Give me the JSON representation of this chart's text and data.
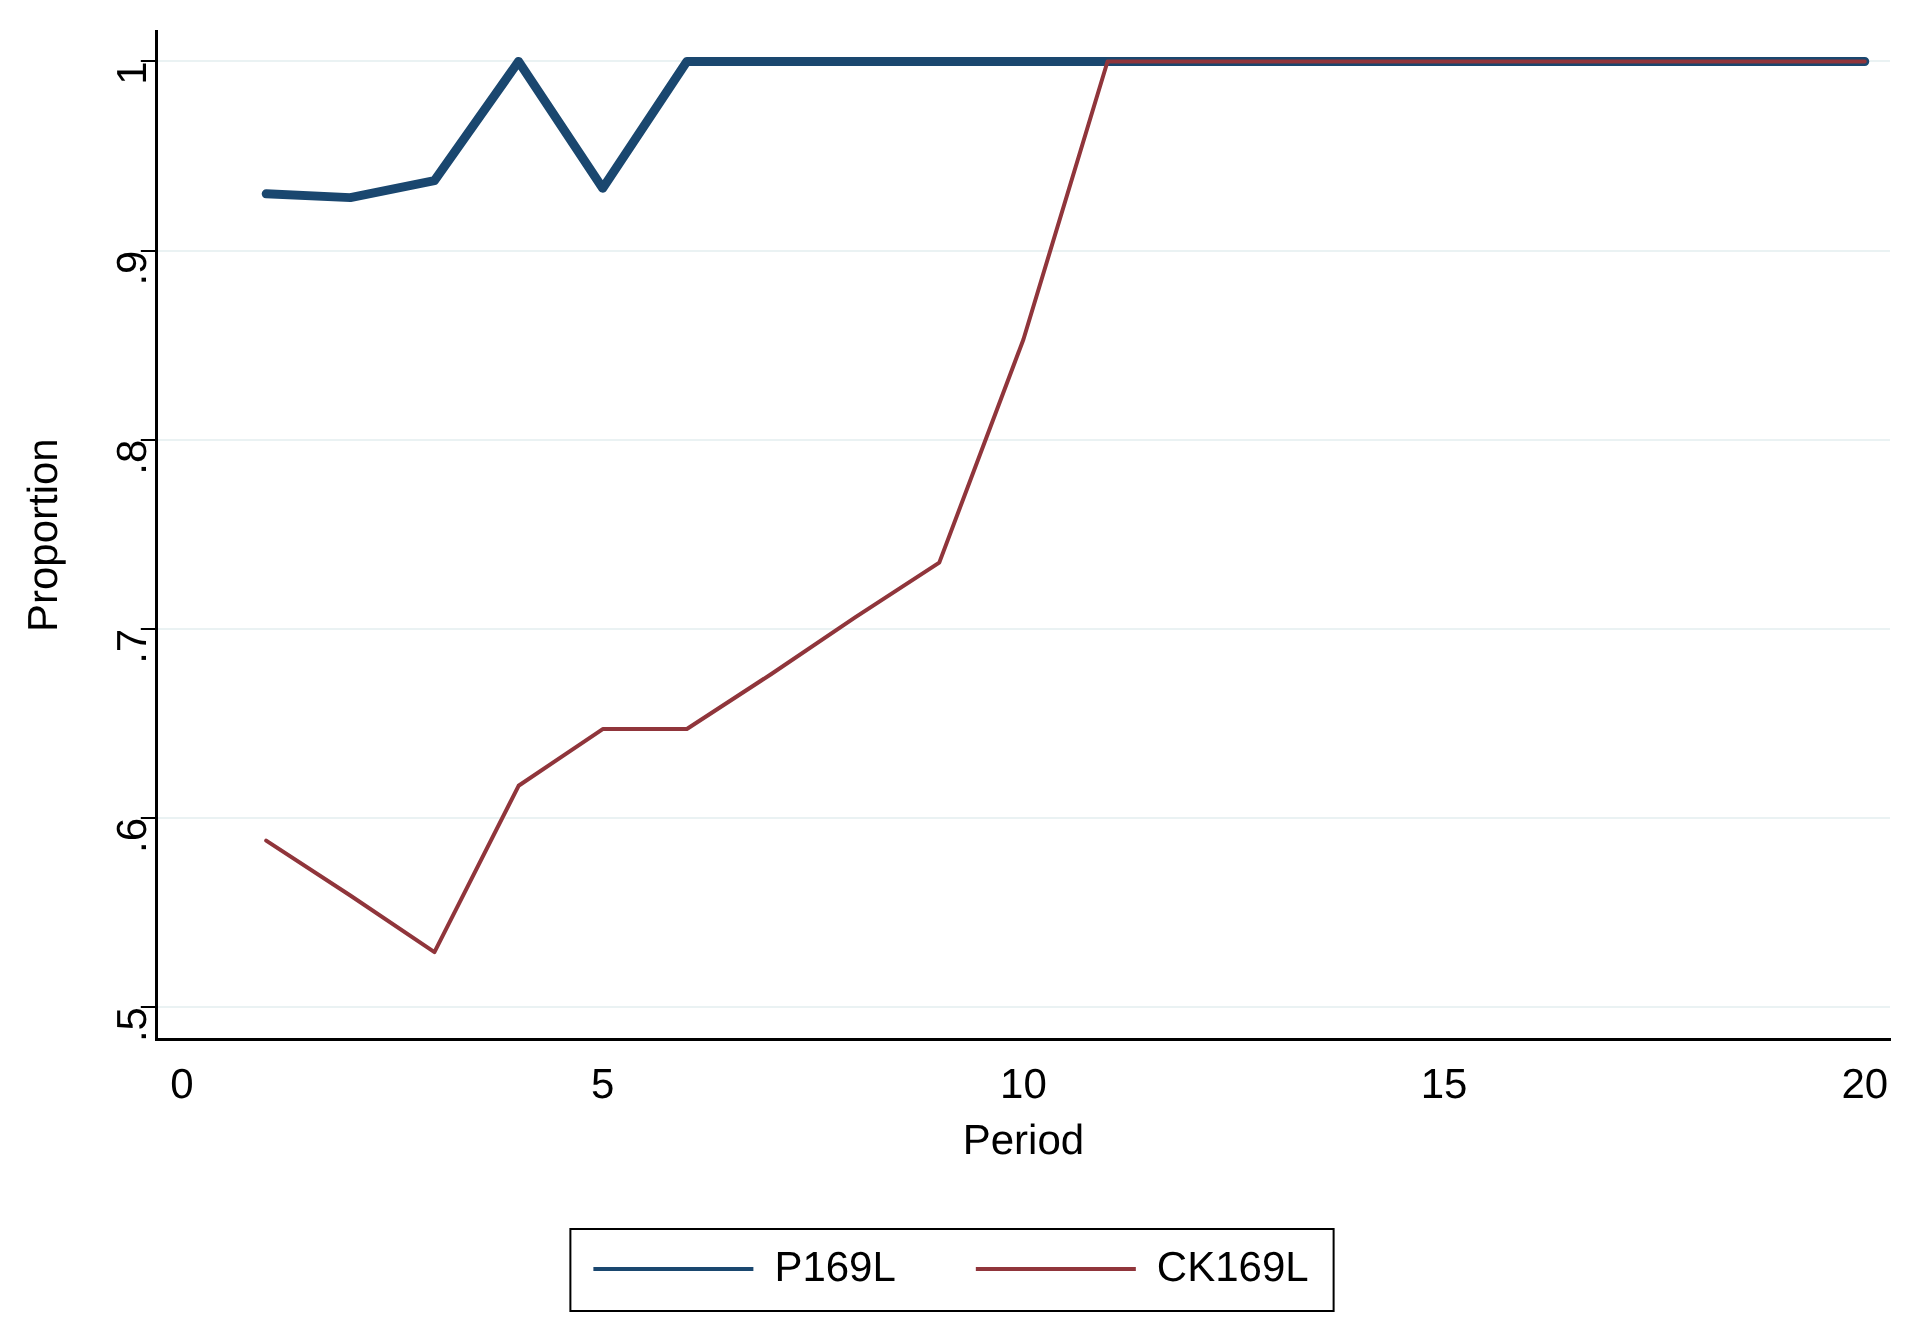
{
  "chart_data": {
    "type": "line",
    "xlabel": "Period",
    "ylabel": "Proportion",
    "x": [
      1,
      2,
      3,
      4,
      5,
      6,
      7,
      8,
      9,
      10,
      11,
      12,
      13,
      14,
      15,
      16,
      17,
      18,
      19,
      20
    ],
    "series": [
      {
        "name": "P169L",
        "color": "#1a476f",
        "values": [
          0.93,
          0.928,
          0.937,
          1,
          0.933,
          1,
          1,
          1,
          1,
          1,
          1,
          1,
          1,
          1,
          1,
          1,
          1,
          1,
          1,
          1
        ]
      },
      {
        "name": "CK169L",
        "color": "#90353b",
        "values": [
          0.588,
          0.559,
          0.529,
          0.617,
          0.647,
          0.647,
          0.676,
          0.706,
          0.735,
          0.853,
          1,
          1,
          1,
          1,
          1,
          1,
          1,
          1,
          1,
          1
        ]
      }
    ],
    "xlim": [
      -0.3,
      20.3
    ],
    "xticks": [
      0,
      5,
      10,
      15,
      20
    ],
    "ylim": [
      0.483,
      1.016
    ],
    "yticks": [
      {
        "value": 0.5,
        "label": ".5"
      },
      {
        "value": 0.6,
        "label": ".6"
      },
      {
        "value": 0.7,
        "label": ".7"
      },
      {
        "value": 0.8,
        "label": ".8"
      },
      {
        "value": 0.9,
        "label": ".9"
      },
      1
    ],
    "grid": "y",
    "legend": "bottom",
    "marker": "none",
    "line_style": "solid"
  }
}
